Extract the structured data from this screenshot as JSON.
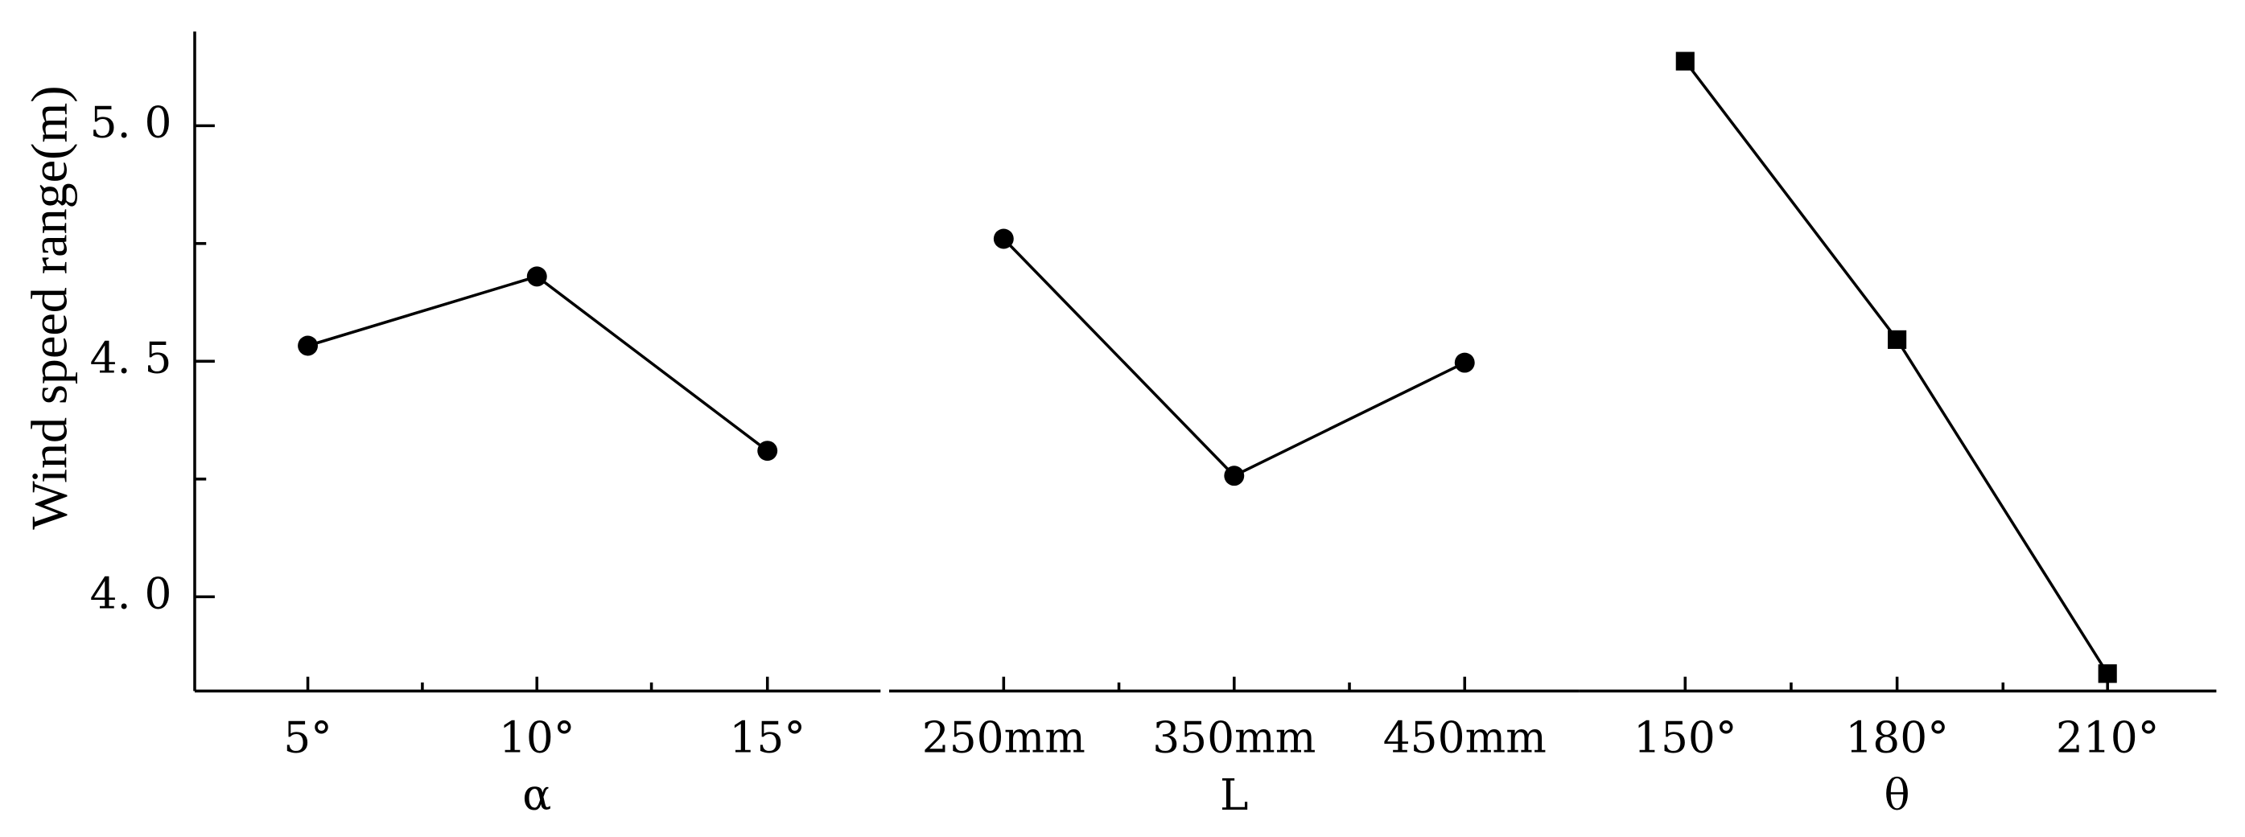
{
  "chart_data": {
    "type": "line",
    "y_label": "Wind speed range(m)",
    "ylim": [
      3.8,
      5.2
    ],
    "yticks": [
      {
        "value": 4,
        "label": "4. 0"
      },
      {
        "value": 4.5,
        "label": "4. 5"
      },
      {
        "value": 5,
        "label": "5. 0"
      }
    ],
    "yminor": [
      4.25,
      4.75
    ],
    "color": "#000000",
    "panels": [
      {
        "label": "α",
        "marker": "circle",
        "categories": [
          "5°",
          "10°",
          "15°"
        ],
        "values": [
          4.533,
          4.68,
          4.31
        ]
      },
      {
        "label": "L",
        "marker": "circle",
        "categories": [
          "250mm",
          "350mm",
          "450mm"
        ],
        "values": [
          4.76,
          4.257,
          4.497
        ]
      },
      {
        "label": "θ",
        "marker": "square",
        "categories": [
          "150°",
          "180°",
          "210°"
        ],
        "values": [
          5.137,
          4.546,
          3.837
        ]
      }
    ]
  }
}
